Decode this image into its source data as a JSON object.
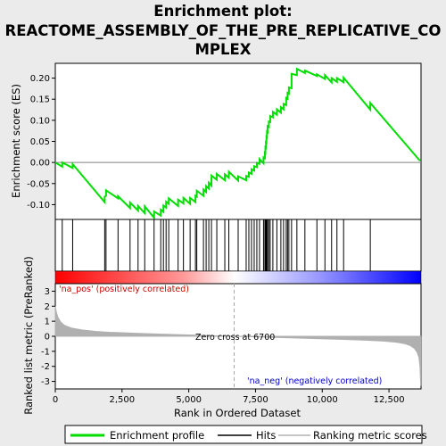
{
  "chart_data": {
    "type": "line",
    "title_line1": "Enrichment plot:",
    "title_line2": "REACTOME_ASSEMBLY_OF_THE_PRE_REPLICATIVE_CO",
    "title_line3": "MPLEX",
    "es_ylabel": "Enrichment score (ES)",
    "metric_ylabel": "Ranked list metric (PreRanked)",
    "xlabel": "Rank in Ordered Dataset",
    "xlim": [
      0,
      13700
    ],
    "es_ylim": [
      -0.135,
      0.235
    ],
    "metric_ylim": [
      -3.5,
      3.5
    ],
    "x_ticks": [
      {
        "value": 0,
        "label": "0"
      },
      {
        "value": 2500,
        "label": "2,500"
      },
      {
        "value": 5000,
        "label": "5,000"
      },
      {
        "value": 7500,
        "label": "7,500"
      },
      {
        "value": 10000,
        "label": "10,000"
      },
      {
        "value": 12500,
        "label": "12,500"
      }
    ],
    "es_ticks": [
      {
        "value": -0.1,
        "label": "-0.10"
      },
      {
        "value": -0.05,
        "label": "-0.05"
      },
      {
        "value": 0.0,
        "label": "0.00"
      },
      {
        "value": 0.05,
        "label": "0.05"
      },
      {
        "value": 0.1,
        "label": "0.10"
      },
      {
        "value": 0.15,
        "label": "0.15"
      },
      {
        "value": 0.2,
        "label": "0.20"
      }
    ],
    "metric_ticks": [
      {
        "value": 3,
        "label": "3"
      },
      {
        "value": 2,
        "label": "2"
      },
      {
        "value": 1,
        "label": "1"
      },
      {
        "value": 0,
        "label": "0"
      },
      {
        "value": -1,
        "label": "-1"
      },
      {
        "value": -2,
        "label": "-2"
      },
      {
        "value": -3,
        "label": "-3"
      }
    ],
    "zero_cross": 6700,
    "zero_cross_label": "Zero cross at 6700",
    "pos_label": "'na_pos' (positively correlated)",
    "neg_label": "'na_neg' (negatively correlated)",
    "hits": [
      260,
      650,
      1850,
      1900,
      2350,
      2800,
      3100,
      3350,
      3700,
      3950,
      4050,
      4150,
      4250,
      4600,
      4800,
      5050,
      5250,
      5300,
      5550,
      5650,
      5750,
      5850,
      6050,
      6350,
      6500,
      6850,
      7150,
      7250,
      7350,
      7450,
      7550,
      7650,
      7800,
      7850,
      7870,
      7890,
      7910,
      7930,
      7950,
      8000,
      8050,
      8150,
      8300,
      8450,
      8550,
      8650,
      8700,
      8750,
      8850,
      9050,
      9350,
      9800,
      10100,
      10350,
      10550,
      10800,
      11800
    ],
    "es_curve": [
      [
        0,
        0.0
      ],
      [
        260,
        -0.01
      ],
      [
        261,
        0.0
      ],
      [
        650,
        -0.013
      ],
      [
        651,
        -0.004
      ],
      [
        1850,
        -0.094
      ],
      [
        1851,
        -0.081
      ],
      [
        1900,
        -0.079
      ],
      [
        1901,
        -0.066
      ],
      [
        2350,
        -0.085
      ],
      [
        2351,
        -0.08
      ],
      [
        2800,
        -0.108
      ],
      [
        2801,
        -0.095
      ],
      [
        3100,
        -0.114
      ],
      [
        3101,
        -0.103
      ],
      [
        3350,
        -0.12
      ],
      [
        3351,
        -0.104
      ],
      [
        3700,
        -0.131
      ],
      [
        3701,
        -0.116
      ],
      [
        3950,
        -0.126
      ],
      [
        3951,
        -0.112
      ],
      [
        4050,
        -0.117
      ],
      [
        4051,
        -0.102
      ],
      [
        4150,
        -0.107
      ],
      [
        4151,
        -0.093
      ],
      [
        4250,
        -0.098
      ],
      [
        4251,
        -0.085
      ],
      [
        4600,
        -0.103
      ],
      [
        4601,
        -0.088
      ],
      [
        4800,
        -0.097
      ],
      [
        4801,
        -0.084
      ],
      [
        5050,
        -0.098
      ],
      [
        5051,
        -0.084
      ],
      [
        5250,
        -0.094
      ],
      [
        5251,
        -0.079
      ],
      [
        5300,
        -0.081
      ],
      [
        5301,
        -0.067
      ],
      [
        5550,
        -0.079
      ],
      [
        5551,
        -0.064
      ],
      [
        5650,
        -0.07
      ],
      [
        5651,
        -0.056
      ],
      [
        5750,
        -0.062
      ],
      [
        5751,
        -0.048
      ],
      [
        5850,
        -0.055
      ],
      [
        5851,
        -0.031
      ],
      [
        6050,
        -0.041
      ],
      [
        6051,
        -0.027
      ],
      [
        6350,
        -0.042
      ],
      [
        6351,
        -0.028
      ],
      [
        6500,
        -0.036
      ],
      [
        6501,
        -0.022
      ],
      [
        6850,
        -0.043
      ],
      [
        6851,
        -0.033
      ],
      [
        7150,
        -0.042
      ],
      [
        7151,
        -0.032
      ],
      [
        7250,
        -0.034
      ],
      [
        7251,
        -0.024
      ],
      [
        7350,
        -0.027
      ],
      [
        7351,
        -0.016
      ],
      [
        7450,
        -0.019
      ],
      [
        7451,
        -0.009
      ],
      [
        7550,
        -0.011
      ],
      [
        7551,
        -0.001
      ],
      [
        7650,
        -0.003
      ],
      [
        7651,
        0.008
      ],
      [
        7800,
        -0.002
      ],
      [
        7801,
        0.012
      ],
      [
        7850,
        0.01
      ],
      [
        7851,
        0.023
      ],
      [
        7870,
        0.022
      ],
      [
        7871,
        0.036
      ],
      [
        7890,
        0.035
      ],
      [
        7891,
        0.048
      ],
      [
        7910,
        0.047
      ],
      [
        7911,
        0.061
      ],
      [
        7930,
        0.06
      ],
      [
        7931,
        0.073
      ],
      [
        7950,
        0.072
      ],
      [
        7951,
        0.086
      ],
      [
        8000,
        0.084
      ],
      [
        8001,
        0.097
      ],
      [
        8050,
        0.096
      ],
      [
        8051,
        0.11
      ],
      [
        8150,
        0.107
      ],
      [
        8151,
        0.12
      ],
      [
        8300,
        0.113
      ],
      [
        8301,
        0.126
      ],
      [
        8450,
        0.118
      ],
      [
        8451,
        0.131
      ],
      [
        8550,
        0.126
      ],
      [
        8551,
        0.139
      ],
      [
        8650,
        0.136
      ],
      [
        8651,
        0.153
      ],
      [
        8700,
        0.151
      ],
      [
        8701,
        0.165
      ],
      [
        8750,
        0.163
      ],
      [
        8751,
        0.178
      ],
      [
        8850,
        0.176
      ],
      [
        8851,
        0.21
      ],
      [
        9050,
        0.207
      ],
      [
        9051,
        0.222
      ],
      [
        9350,
        0.212
      ],
      [
        9351,
        0.218
      ],
      [
        9800,
        0.205
      ],
      [
        9801,
        0.209
      ],
      [
        10100,
        0.198
      ],
      [
        10101,
        0.207
      ],
      [
        10350,
        0.19
      ],
      [
        10351,
        0.2
      ],
      [
        10550,
        0.191
      ],
      [
        10551,
        0.2
      ],
      [
        10800,
        0.19
      ],
      [
        10801,
        0.201
      ],
      [
        11800,
        0.125
      ],
      [
        11801,
        0.141
      ],
      [
        13660,
        0.004
      ]
    ],
    "metric_curve": [
      [
        0,
        2.0
      ],
      [
        40,
        1.6
      ],
      [
        100,
        1.25
      ],
      [
        200,
        0.95
      ],
      [
        350,
        0.72
      ],
      [
        600,
        0.55
      ],
      [
        1000,
        0.42
      ],
      [
        1500,
        0.33
      ],
      [
        2000,
        0.27
      ],
      [
        3000,
        0.2
      ],
      [
        4000,
        0.14
      ],
      [
        5000,
        0.09
      ],
      [
        6000,
        0.04
      ],
      [
        6700,
        0.0
      ],
      [
        7500,
        -0.04
      ],
      [
        8500,
        -0.09
      ],
      [
        9500,
        -0.14
      ],
      [
        10500,
        -0.19
      ],
      [
        11500,
        -0.25
      ],
      [
        12300,
        -0.32
      ],
      [
        12800,
        -0.4
      ],
      [
        13100,
        -0.5
      ],
      [
        13300,
        -0.62
      ],
      [
        13450,
        -0.8
      ],
      [
        13550,
        -1.05
      ],
      [
        13620,
        -1.4
      ],
      [
        13660,
        -2.0
      ],
      [
        13690,
        -3.3
      ]
    ],
    "colors": {
      "es_line": "#00dd00",
      "hit_line": "#000000",
      "metric_fill": "#b0b0b0",
      "zero_line": "#aaaaaa",
      "pos_label": "#cc0000",
      "neg_label": "#0000cc",
      "heat_pos": "#ff0000",
      "heat_mid": "#ffffff",
      "heat_neg": "#0000ff"
    },
    "legend": [
      {
        "name": "Enrichment profile",
        "icon": "green-line-icon"
      },
      {
        "name": "Hits",
        "icon": "black-line-icon"
      },
      {
        "name": "Ranking metric scores",
        "icon": "gray-line-icon"
      }
    ]
  }
}
